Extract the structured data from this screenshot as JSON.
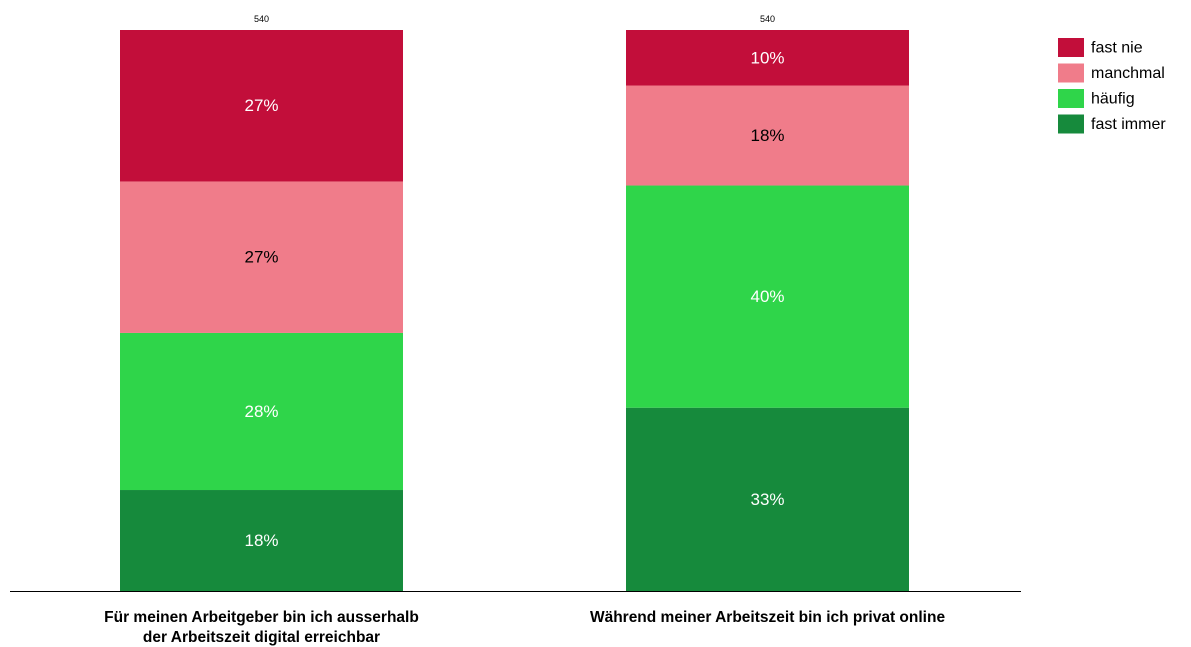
{
  "chart_data": {
    "type": "bar",
    "stacked": true,
    "orientation": "vertical",
    "categories": [
      [
        "Für meinen Arbeitgeber bin ich ausserhalb",
        "der Arbeitszeit digital erreichbar"
      ],
      [
        "Während meiner Arbeitszeit bin ich privat online"
      ]
    ],
    "totals_n": [
      "540",
      "540"
    ],
    "series": [
      {
        "name": "fast immer",
        "color": "#168a3c",
        "label_color": "#ffffff",
        "values": [
          18,
          33
        ]
      },
      {
        "name": "häufig",
        "color": "#2fd54a",
        "label_color": "#ffffff",
        "values": [
          28,
          40
        ]
      },
      {
        "name": "manchmal",
        "color": "#f07c8a",
        "label_color": "#000000",
        "values": [
          27,
          18
        ]
      },
      {
        "name": "fast nie",
        "color": "#c20e3a",
        "label_color": "#ffffff",
        "values": [
          27,
          10
        ]
      }
    ],
    "value_suffix": "%",
    "legend": {
      "position": "top-right",
      "order": [
        "fast nie",
        "manchmal",
        "häufig",
        "fast immer"
      ]
    },
    "axis_line_color": "#000000"
  }
}
